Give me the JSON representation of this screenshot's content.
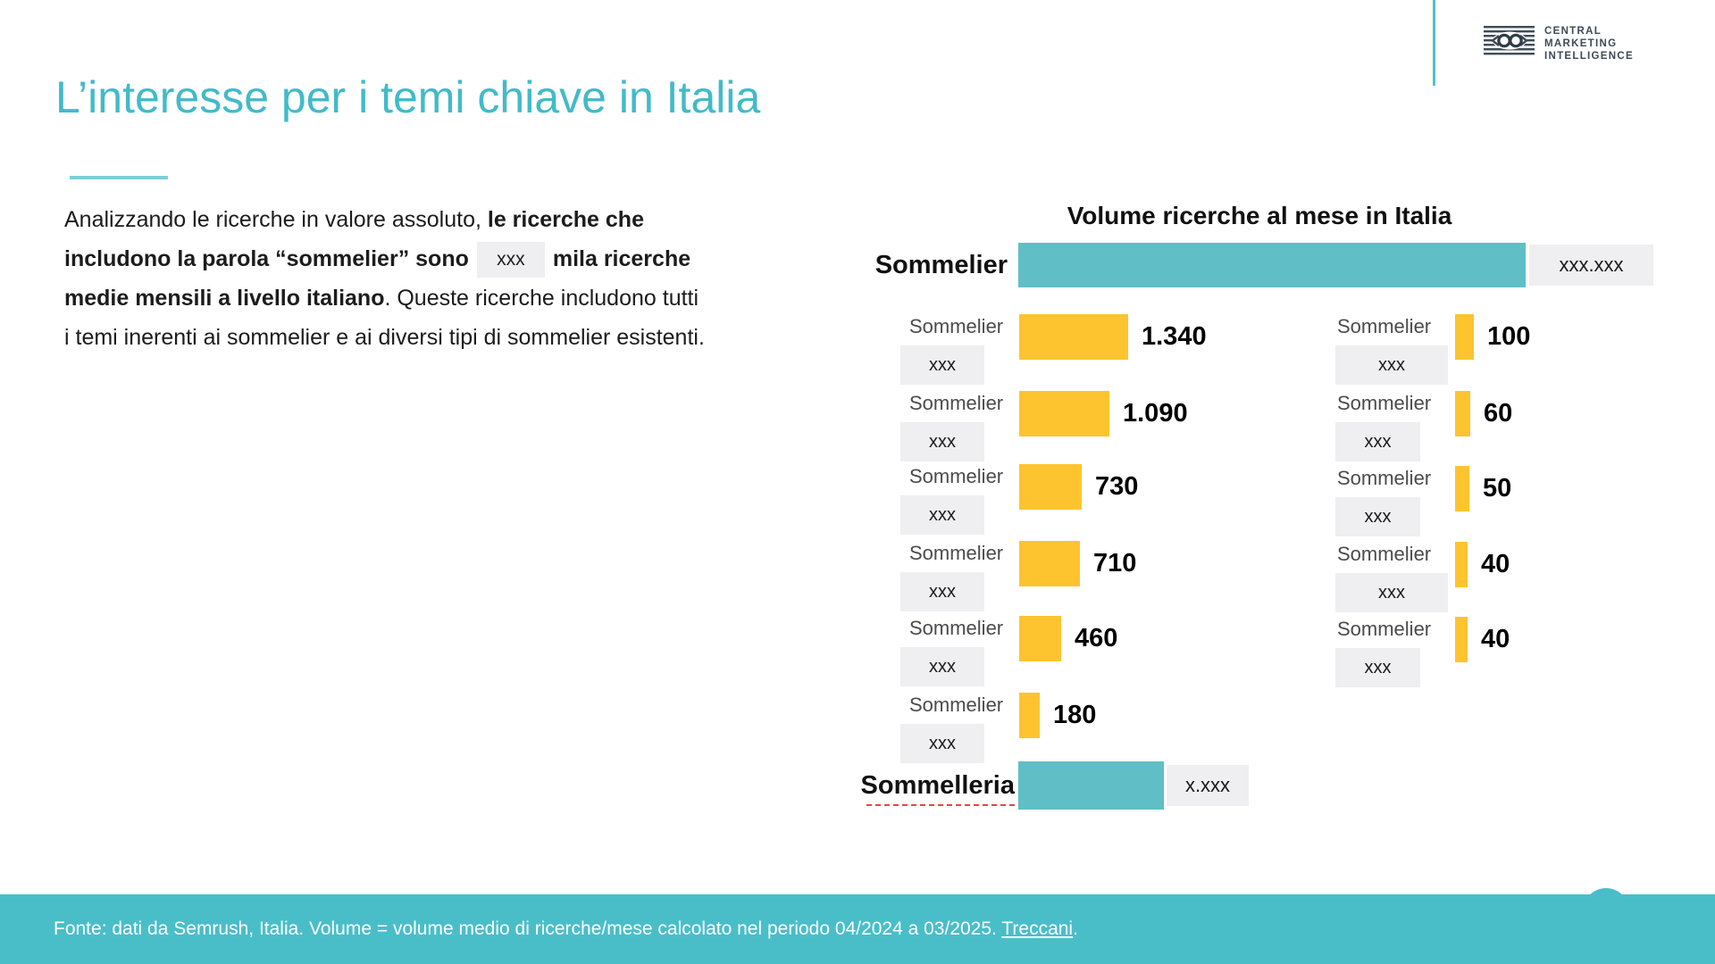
{
  "slide": {
    "title": "L’interesse per i temi chiave in Italia",
    "logo": {
      "line1": "CENTRAL",
      "line2": "MARKETING",
      "line3": "INTELLIGENCE"
    },
    "paragraph": {
      "line1_regular": "Analizzando le ricerche in valore assoluto, ",
      "line1_bold": "le ricerche che",
      "line2_bold_a": "includono la parola “sommelier” sono",
      "redacted": "xxx",
      "line2_bold_b": "mila ricerche",
      "line3_bold": "medie mensili a livello italiano",
      "line3_regular": ". Queste ricerche includono tutti",
      "line4_regular": "i temi inerenti ai sommelier e ai diversi tipi di sommelier esistenti."
    },
    "footer": {
      "text": "Fonte: dati da Semrush, Italia. Volume = volume medio di ricerche/mese calcolato nel periodo 04/2024 a 03/2025. ",
      "link": "Treccani",
      "suffix": "."
    },
    "colors": {
      "title_teal": "#43bac9",
      "bar_teal": "#5fbec6",
      "bar_yellow": "#fdc42f",
      "footer_teal": "#49bec9",
      "redaction_gray": "#efeef0",
      "spellcheck_red": "#e2473d"
    }
  },
  "chart_data": {
    "type": "bar",
    "orientation": "horizontal",
    "title": "Volume ricerche al mese in Italia",
    "legend": "none",
    "grid": "off",
    "top_bar": {
      "label": "Sommelier",
      "value_label": "xxx.xxx",
      "redacted": true
    },
    "left_column": [
      {
        "label": "Sommelier",
        "sub_label": "xxx",
        "value": 1340,
        "value_label": "1.340"
      },
      {
        "label": "Sommelier",
        "sub_label": "xxx",
        "value": 1090,
        "value_label": "1.090"
      },
      {
        "label": "Sommelier",
        "sub_label": "xxx",
        "value": 730,
        "value_label": "730"
      },
      {
        "label": "Sommelier",
        "sub_label": "xxx",
        "value": 710,
        "value_label": "710"
      },
      {
        "label": "Sommelier",
        "sub_label": "xxx",
        "value": 460,
        "value_label": "460"
      },
      {
        "label": "Sommelier",
        "sub_label": "xxx",
        "value": 180,
        "value_label": "180"
      }
    ],
    "right_column": [
      {
        "label": "Sommelier",
        "sub_label": "xxx",
        "value": 100,
        "value_label": "100"
      },
      {
        "label": "Sommelier",
        "sub_label": "xxx",
        "value": 60,
        "value_label": "60"
      },
      {
        "label": "Sommelier",
        "sub_label": "xxx",
        "value": 50,
        "value_label": "50"
      },
      {
        "label": "Sommelier",
        "sub_label": "xxx",
        "value": 40,
        "value_label": "40"
      },
      {
        "label": "Sommelier",
        "sub_label": "xxx",
        "value": 40,
        "value_label": "40"
      }
    ],
    "bottom_bar": {
      "label": "Sommelleria",
      "value_label": "x.xxx",
      "redacted": true
    }
  }
}
